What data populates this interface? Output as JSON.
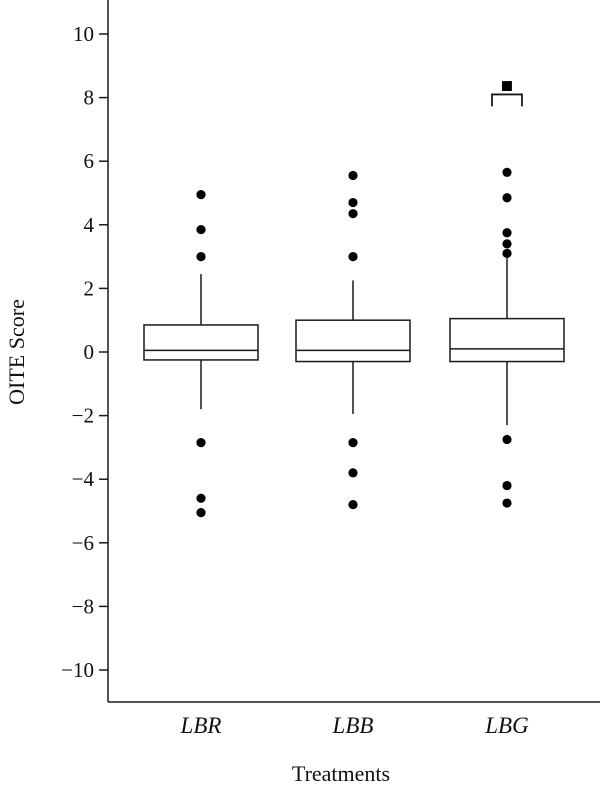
{
  "chart_data": {
    "type": "box",
    "title": "",
    "xlabel": "Treatments",
    "ylabel": "OITE Score",
    "ylim": [
      -11,
      11
    ],
    "yticks": [
      10,
      8,
      6,
      4,
      2,
      0,
      -2,
      -4,
      -6,
      -8,
      -10
    ],
    "ytick_labels": [
      "10",
      "8",
      "6",
      "4",
      "2",
      "0",
      "−2",
      "−4",
      "−6",
      "−8",
      "−10"
    ],
    "categories": [
      "LBR",
      "LBB",
      "LBG"
    ],
    "boxes": [
      {
        "category": "LBR",
        "whisker_low": -1.8,
        "q1": -0.25,
        "median": 0.05,
        "q3": 0.85,
        "whisker_high": 2.45,
        "outliers": [
          4.95,
          3.85,
          3.0,
          -2.85,
          -4.6,
          -5.05
        ]
      },
      {
        "category": "LBB",
        "whisker_low": -1.95,
        "q1": -0.3,
        "median": 0.05,
        "q3": 1.0,
        "whisker_high": 2.25,
        "outliers": [
          5.55,
          4.7,
          4.35,
          3.0,
          -2.85,
          -3.8,
          -4.8
        ]
      },
      {
        "category": "LBG",
        "whisker_low": -2.3,
        "q1": -0.3,
        "median": 0.1,
        "q3": 1.05,
        "whisker_high": 2.95,
        "outliers": [
          5.65,
          4.85,
          3.75,
          3.4,
          3.1,
          -2.75,
          -4.2,
          -4.75
        ]
      }
    ],
    "significance": {
      "from": "LBG",
      "marker": "■",
      "bracket_y": 8.1
    },
    "grid": false,
    "legend": "none",
    "colors": {
      "box_fill": "#ffffff",
      "stroke": "#1a1a1a",
      "outlier": "#000000"
    }
  }
}
